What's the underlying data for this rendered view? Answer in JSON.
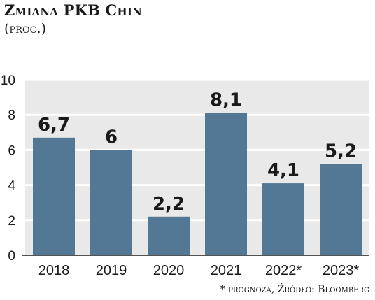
{
  "title": "Zmiana PKB Chin",
  "subtitle": "(proc.)",
  "source": "* prognoza, Źródło: Bloomberg",
  "colors": {
    "bar": "#527895",
    "panel": "#e9e9e9",
    "grid": "#ffffff",
    "text": "#1a1a1a"
  },
  "chart_data": {
    "type": "bar",
    "categories": [
      "2018",
      "2019",
      "2020",
      "2021",
      "2022*",
      "2023*"
    ],
    "values": [
      6.7,
      6,
      2.2,
      8.1,
      4.1,
      5.2
    ],
    "value_labels": [
      "6,7",
      "6",
      "2,2",
      "8,1",
      "4,1",
      "5,2"
    ],
    "y_ticks": [
      "0",
      "2",
      "4",
      "6",
      "8",
      "10"
    ],
    "ylim": [
      0,
      10
    ],
    "grid": true,
    "title": "Zmiana PKB Chin",
    "xlabel": "",
    "ylabel": ""
  }
}
